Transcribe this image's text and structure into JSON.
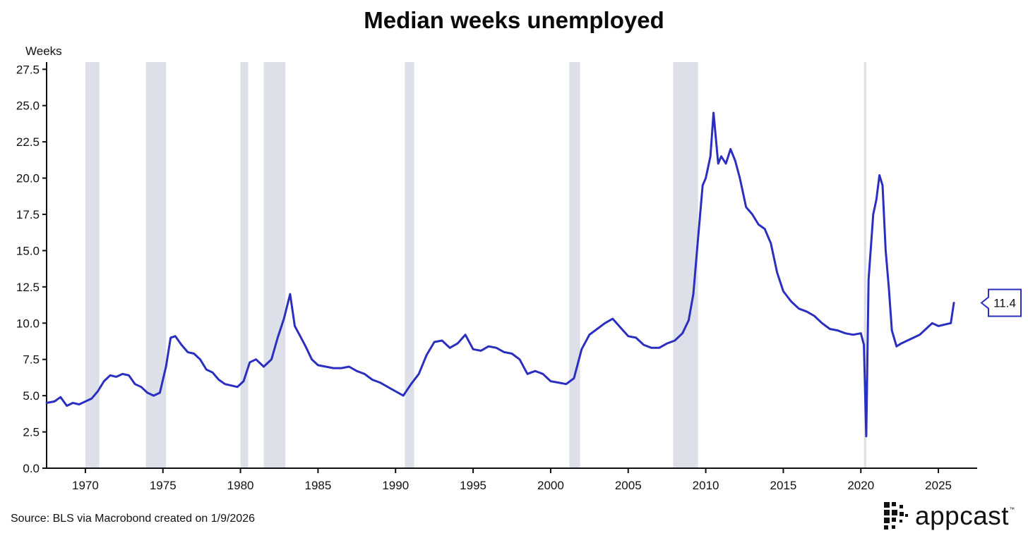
{
  "header": {
    "title": "Median weeks unemployed"
  },
  "footer": {
    "source": "Source: BLS via Macrobond created on 1/9/2026"
  },
  "logo": {
    "text": "appcast",
    "trademark": "™",
    "icon": "pixel-grid-logo-icon"
  },
  "colors": {
    "line": "#2b2fbf",
    "recession": "#dde0e8",
    "axis": "#111111",
    "label_border": "#2b2fbf"
  },
  "chart_data": {
    "type": "line",
    "title": "Median weeks unemployed",
    "ylabel": "Weeks",
    "xlabel": "",
    "ylim": [
      0,
      28
    ],
    "xlim": [
      1967.5,
      2027.5
    ],
    "grid": false,
    "x_ticks": [
      1970,
      1975,
      1980,
      1985,
      1990,
      1995,
      2000,
      2005,
      2010,
      2015,
      2020,
      2025
    ],
    "y_ticks": [
      "0.0",
      "2.5",
      "5.0",
      "7.5",
      "10.0",
      "12.5",
      "15.0",
      "17.5",
      "20.0",
      "22.5",
      "25.0",
      "27.5"
    ],
    "last_value_label": "11.4",
    "recessions": [
      [
        1970.0,
        1970.9
      ],
      [
        1973.9,
        1975.2
      ],
      [
        1980.0,
        1980.5
      ],
      [
        1981.5,
        1982.9
      ],
      [
        1990.6,
        1991.2
      ],
      [
        2001.2,
        2001.9
      ],
      [
        2007.9,
        2009.5
      ],
      [
        2020.2,
        2020.35
      ]
    ],
    "series": [
      {
        "x": [
          1967.5,
          1968.0,
          1968.4,
          1968.8,
          1969.2,
          1969.6,
          1970.0,
          1970.4,
          1970.8,
          1971.2,
          1971.6,
          1972.0,
          1972.4,
          1972.8,
          1973.2,
          1973.6,
          1974.0,
          1974.4,
          1974.8,
          1975.2,
          1975.5,
          1975.8,
          1976.2,
          1976.6,
          1977.0,
          1977.4,
          1977.8,
          1978.2,
          1978.6,
          1979.0,
          1979.4,
          1979.8,
          1980.2,
          1980.6,
          1981.0,
          1981.5,
          1982.0,
          1982.4,
          1982.8,
          1983.2,
          1983.5,
          1983.8,
          1984.2,
          1984.6,
          1985.0,
          1985.5,
          1986.0,
          1986.5,
          1987.0,
          1987.5,
          1988.0,
          1988.5,
          1989.0,
          1989.5,
          1990.0,
          1990.5,
          1991.0,
          1991.5,
          1992.0,
          1992.5,
          1993.0,
          1993.5,
          1994.0,
          1994.5,
          1995.0,
          1995.5,
          1996.0,
          1996.5,
          1997.0,
          1997.5,
          1998.0,
          1998.5,
          1999.0,
          1999.5,
          2000.0,
          2000.5,
          2001.0,
          2001.5,
          2002.0,
          2002.5,
          2003.0,
          2003.5,
          2004.0,
          2004.5,
          2005.0,
          2005.5,
          2006.0,
          2006.5,
          2007.0,
          2007.5,
          2008.0,
          2008.5,
          2008.9,
          2009.2,
          2009.5,
          2009.8,
          2010.0,
          2010.3,
          2010.5,
          2010.8,
          2011.0,
          2011.3,
          2011.6,
          2011.9,
          2012.2,
          2012.6,
          2013.0,
          2013.4,
          2013.8,
          2014.2,
          2014.6,
          2015.0,
          2015.5,
          2016.0,
          2016.5,
          2017.0,
          2017.5,
          2018.0,
          2018.5,
          2019.0,
          2019.5,
          2020.0,
          2020.2,
          2020.35,
          2020.5,
          2020.8,
          2021.0,
          2021.2,
          2021.4,
          2021.6,
          2021.8,
          2022.0,
          2022.3,
          2022.6,
          2023.0,
          2023.4,
          2023.8,
          2024.2,
          2024.6,
          2025.0,
          2025.4,
          2025.8,
          2026.0
        ],
        "y": [
          4.5,
          4.6,
          4.9,
          4.3,
          4.5,
          4.4,
          4.6,
          4.8,
          5.3,
          6.0,
          6.4,
          6.3,
          6.5,
          6.4,
          5.8,
          5.6,
          5.2,
          5.0,
          5.2,
          7.0,
          9.0,
          9.1,
          8.5,
          8.0,
          7.9,
          7.5,
          6.8,
          6.6,
          6.1,
          5.8,
          5.7,
          5.6,
          6.0,
          7.3,
          7.5,
          7.0,
          7.5,
          9.0,
          10.3,
          12.0,
          9.8,
          9.2,
          8.4,
          7.5,
          7.1,
          7.0,
          6.9,
          6.9,
          7.0,
          6.7,
          6.5,
          6.1,
          5.9,
          5.6,
          5.3,
          5.0,
          5.8,
          6.5,
          7.8,
          8.7,
          8.8,
          8.3,
          8.6,
          9.2,
          8.2,
          8.1,
          8.4,
          8.3,
          8.0,
          7.9,
          7.5,
          6.5,
          6.7,
          6.5,
          6.0,
          5.9,
          5.8,
          6.2,
          8.2,
          9.2,
          9.6,
          10.0,
          10.3,
          9.7,
          9.1,
          9.0,
          8.5,
          8.3,
          8.3,
          8.6,
          8.8,
          9.3,
          10.2,
          12.0,
          15.8,
          19.5,
          20.0,
          21.5,
          24.5,
          21.0,
          21.5,
          21.0,
          22.0,
          21.2,
          20.0,
          18.0,
          17.5,
          16.8,
          16.5,
          15.5,
          13.5,
          12.2,
          11.5,
          11.0,
          10.8,
          10.5,
          10.0,
          9.6,
          9.5,
          9.3,
          9.2,
          9.3,
          8.5,
          2.2,
          13.0,
          17.5,
          18.5,
          20.2,
          19.5,
          15.0,
          12.5,
          9.5,
          8.4,
          8.6,
          8.8,
          9.0,
          9.2,
          9.6,
          10.0,
          9.8,
          9.9,
          10.0,
          11.4
        ]
      }
    ]
  }
}
